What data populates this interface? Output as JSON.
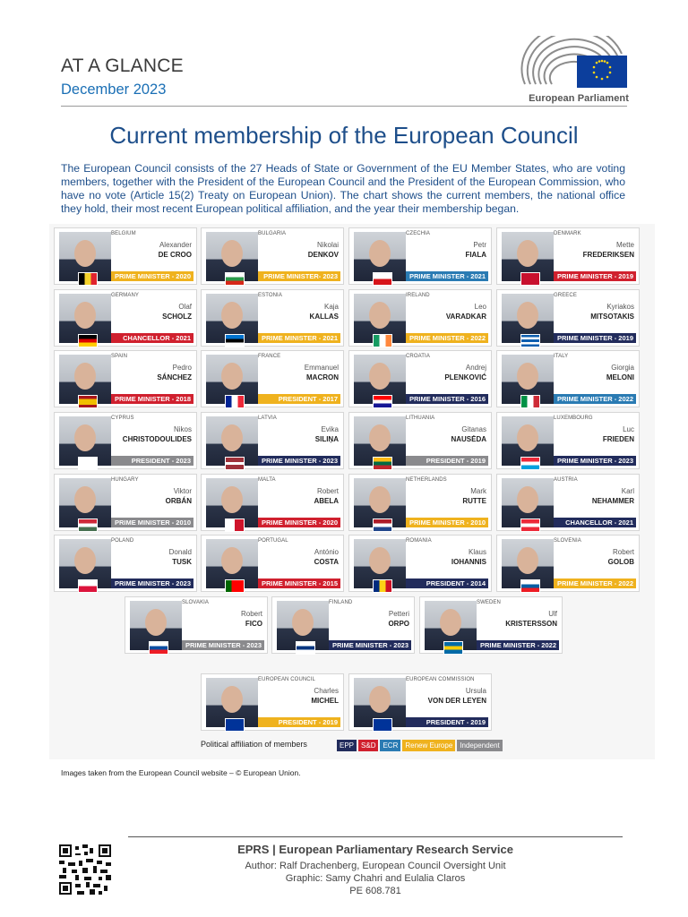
{
  "header": {
    "title": "AT A GLANCE",
    "date": "December 2023",
    "logo_text": "European Parliament"
  },
  "main": {
    "title": "Current membership of the European Council",
    "intro": "The European Council consists of the 27 Heads of State or Government of the EU Member States, who are voting members, together with the President of the European Council and the President of the European Commission, who have no vote (Article 15(2) Treaty on European Union). The chart shows the current members, the national office they hold, their most recent European political affiliation, and the year their membership began."
  },
  "party_colors": {
    "EPP": "#222c5c",
    "S&D": "#d0202e",
    "ECR": "#2a7bb3",
    "Renew Europe": "#efb21e",
    "Independent": "#8a8a8d"
  },
  "members": [
    {
      "country": "Belgium",
      "first": "Alexander",
      "last": "DE CROO",
      "office": "PRIME MINISTER - 2020",
      "party": "Renew Europe",
      "flag": [
        "#000000",
        "#f5d22b",
        "#e0232e"
      ],
      "flag_dir": "v"
    },
    {
      "country": "Bulgaria",
      "first": "Nikolai",
      "last": "DENKOV",
      "office": "PRIME MINISTER- 2023",
      "party": "Renew Europe",
      "flag": [
        "#ffffff",
        "#2a9a4a",
        "#d62718"
      ],
      "flag_dir": "h"
    },
    {
      "country": "Czechia",
      "first": "Petr",
      "last": "FIALA",
      "office": "PRIME MINISTER - 2021",
      "party": "ECR",
      "flag": [
        "#ffffff",
        "#d7141a"
      ],
      "flag_dir": "h"
    },
    {
      "country": "Denmark",
      "first": "Mette",
      "last": "FREDERIKSEN",
      "office": "PRIME MINISTER - 2019",
      "party": "S&D",
      "flag": [
        "#c8102e"
      ],
      "flag_dir": "h"
    },
    {
      "country": "Germany",
      "first": "Olaf",
      "last": "SCHOLZ",
      "office": "CHANCELLOR - 2021",
      "party": "S&D",
      "flag": [
        "#000000",
        "#dd0000",
        "#ffce00"
      ],
      "flag_dir": "h"
    },
    {
      "country": "Estonia",
      "first": "Kaja",
      "last": "KALLAS",
      "office": "PRIME MINISTER - 2021",
      "party": "Renew Europe",
      "flag": [
        "#0072ce",
        "#000000",
        "#ffffff"
      ],
      "flag_dir": "h"
    },
    {
      "country": "Ireland",
      "first": "Leo",
      "last": "VARADKAR",
      "office": "PRIME MINISTER - 2022",
      "party": "Renew Europe",
      "flag": [
        "#169b62",
        "#ffffff",
        "#ff883e"
      ],
      "flag_dir": "v"
    },
    {
      "country": "Greece",
      "first": "Kyriakos",
      "last": "MITSOTAKIS",
      "office": "PRIME MINISTER - 2019",
      "party": "EPP",
      "flag": [
        "#0d5eaf",
        "#ffffff",
        "#0d5eaf",
        "#ffffff",
        "#0d5eaf"
      ],
      "flag_dir": "h"
    },
    {
      "country": "Spain",
      "first": "Pedro",
      "last": "SÁNCHEZ",
      "office": "PRIME MINISTER - 2018",
      "party": "S&D",
      "flag": [
        "#aa151b",
        "#f1bf00",
        "#f1bf00",
        "#aa151b"
      ],
      "flag_dir": "h"
    },
    {
      "country": "France",
      "first": "Emmanuel",
      "last": "MACRON",
      "office": "PRESIDENT - 2017",
      "party": "Renew Europe",
      "flag": [
        "#002395",
        "#ffffff",
        "#ed2939"
      ],
      "flag_dir": "v"
    },
    {
      "country": "Croatia",
      "first": "Andrej",
      "last": "PLENKOVIĆ",
      "office": "PRIME MINISTER - 2016",
      "party": "EPP",
      "flag": [
        "#ff0000",
        "#ffffff",
        "#171796"
      ],
      "flag_dir": "h"
    },
    {
      "country": "Italy",
      "first": "Giorgia",
      "last": "MELONI",
      "office": "PRIME MINISTER - 2022",
      "party": "ECR",
      "flag": [
        "#009246",
        "#ffffff",
        "#ce2b37"
      ],
      "flag_dir": "v"
    },
    {
      "country": "Cyprus",
      "first": "Nikos",
      "last": "CHRISTODOULIDES",
      "office": "PRESIDENT - 2023",
      "party": "Independent",
      "flag": [
        "#ffffff"
      ],
      "flag_dir": "h"
    },
    {
      "country": "Latvia",
      "first": "Evika",
      "last": "SILIŅA",
      "office": "PRIME MINISTER - 2023",
      "party": "EPP",
      "flag": [
        "#9e3039",
        "#9e3039",
        "#ffffff",
        "#9e3039",
        "#9e3039"
      ],
      "flag_dir": "h"
    },
    {
      "country": "Lithuania",
      "first": "Gitanas",
      "last": "NAUSĖDA",
      "office": "PRESIDENT - 2019",
      "party": "Independent",
      "flag": [
        "#fdb913",
        "#006a44",
        "#c1272d"
      ],
      "flag_dir": "h"
    },
    {
      "country": "Luxembourg",
      "first": "Luc",
      "last": "FRIEDEN",
      "office": "PRIME MINISTER - 2023",
      "party": "EPP",
      "flag": [
        "#ed2939",
        "#ffffff",
        "#00a1de"
      ],
      "flag_dir": "h"
    },
    {
      "country": "Hungary",
      "first": "Viktor",
      "last": "ORBÁN",
      "office": "PRIME MINISTER - 2010",
      "party": "Independent",
      "flag": [
        "#ce2939",
        "#ffffff",
        "#477050"
      ],
      "flag_dir": "h"
    },
    {
      "country": "Malta",
      "first": "Robert",
      "last": "ABELA",
      "office": "PRIME MINISTER - 2020",
      "party": "S&D",
      "flag": [
        "#ffffff",
        "#cf142b"
      ],
      "flag_dir": "v"
    },
    {
      "country": "Netherlands",
      "first": "Mark",
      "last": "RUTTE",
      "office": "PRIME MINISTER - 2010",
      "party": "Renew Europe",
      "flag": [
        "#ae1c28",
        "#ffffff",
        "#21468b"
      ],
      "flag_dir": "h"
    },
    {
      "country": "Austria",
      "first": "Karl",
      "last": "NEHAMMER",
      "office": "CHANCELLOR - 2021",
      "party": "EPP",
      "flag": [
        "#ed2939",
        "#ffffff",
        "#ed2939"
      ],
      "flag_dir": "h"
    },
    {
      "country": "Poland",
      "first": "Donald",
      "last": "TUSK",
      "office": "PRIME MINISTER - 2023",
      "party": "EPP",
      "flag": [
        "#ffffff",
        "#dc143c"
      ],
      "flag_dir": "h"
    },
    {
      "country": "Portugal",
      "first": "António",
      "last": "COSTA",
      "office": "PRIME MINISTER - 2015",
      "party": "S&D",
      "flag": [
        "#006600",
        "#ff0000",
        "#ff0000"
      ],
      "flag_dir": "v"
    },
    {
      "country": "Romania",
      "first": "Klaus",
      "last": "IOHANNIS",
      "office": "PRESIDENT - 2014",
      "party": "EPP",
      "flag": [
        "#002b7f",
        "#fcd116",
        "#ce1126"
      ],
      "flag_dir": "v"
    },
    {
      "country": "Slovenia",
      "first": "Robert",
      "last": "GOLOB",
      "office": "PRIME MINISTER - 2022",
      "party": "Renew Europe",
      "flag": [
        "#ffffff",
        "#005da4",
        "#ed1c24"
      ],
      "flag_dir": "h"
    },
    {
      "country": "Slovakia",
      "first": "Robert",
      "last": "FICO",
      "office": "PRIME MINISTER - 2023",
      "party": "Independent",
      "flag": [
        "#ffffff",
        "#0b4ea2",
        "#ee1c25"
      ],
      "flag_dir": "h"
    },
    {
      "country": "Finland",
      "first": "Petteri",
      "last": "ORPO",
      "office": "PRIME MINISTER - 2023",
      "party": "EPP",
      "flag": [
        "#ffffff",
        "#003580",
        "#ffffff"
      ],
      "flag_dir": "h"
    },
    {
      "country": "Sweden",
      "first": "Ulf",
      "last": "KRISTERSSON",
      "office": "PRIME MINISTER - 2022",
      "party": "EPP",
      "flag": [
        "#006aa7",
        "#fecc00",
        "#006aa7"
      ],
      "flag_dir": "h"
    },
    {
      "country": "European Council",
      "first": "Charles",
      "last": "MICHEL",
      "office": "PRESIDENT - 2019",
      "party": "Renew Europe",
      "flag": [
        "#003399"
      ],
      "flag_dir": "h"
    },
    {
      "country": "European Commission",
      "first": "Ursula",
      "last": "VON DER LEYEN",
      "office": "PRESIDENT - 2019",
      "party": "EPP",
      "flag": [
        "#003399"
      ],
      "flag_dir": "h"
    }
  ],
  "legend": {
    "label": "Political affiliation of members",
    "items": [
      "EPP",
      "S&D",
      "ECR",
      "Renew Europe",
      "Independent"
    ]
  },
  "credit": "Images taken from the European Council website – © European Union.",
  "footer": {
    "org": "EPRS | European Parliamentary Research Service",
    "author": "Author: Ralf Drachenberg, European Council Oversight Unit",
    "graphic": "Graphic: Samy Chahri and Eulalia Claros",
    "ref": "PE 608.781"
  }
}
